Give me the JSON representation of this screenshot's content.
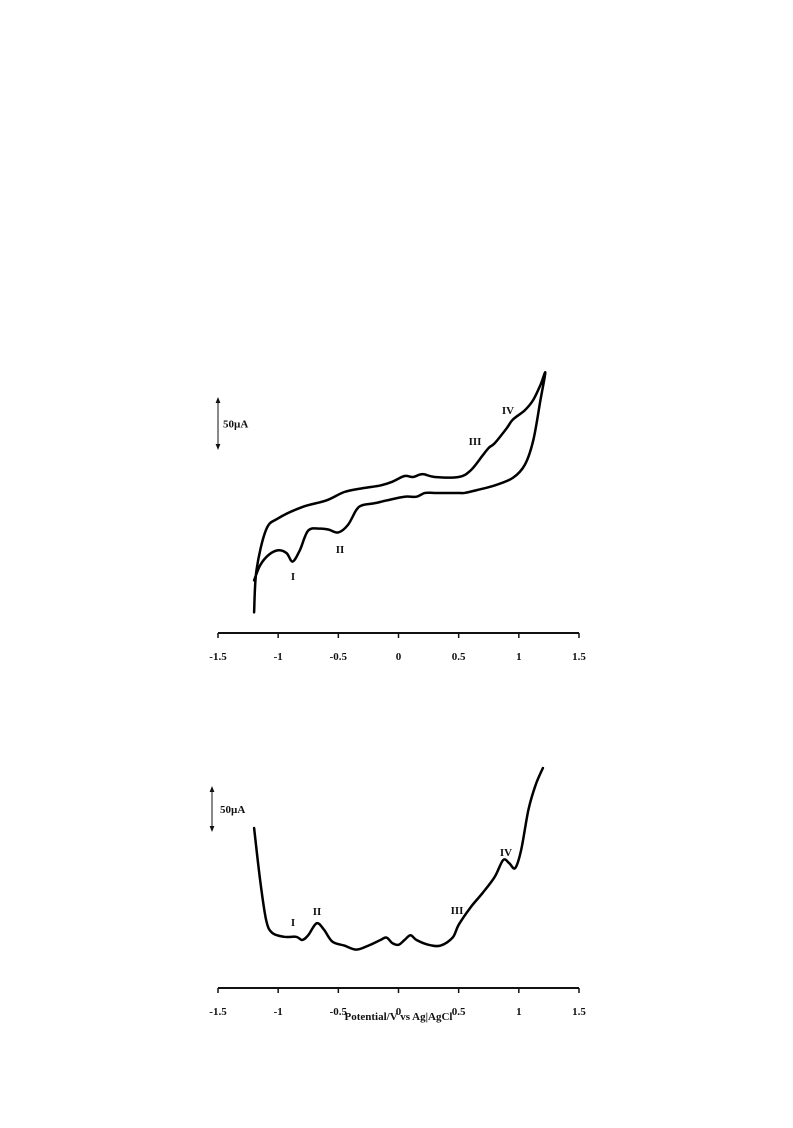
{
  "chart_data": [
    {
      "type": "line",
      "color": "#000000",
      "xlim": [
        -1.5,
        1.5
      ],
      "xticks": [
        -1.5,
        -1,
        -0.5,
        0,
        0.5,
        1,
        1.5
      ],
      "scale_bar": {
        "value": 50,
        "label": "50µA"
      },
      "annotations": [
        "I",
        "II",
        "III",
        "IV"
      ],
      "x": [
        -1.2,
        -1.18,
        -1.1,
        -1.0,
        -0.8,
        -0.6,
        -0.45,
        -0.3,
        -0.15,
        -0.05,
        0.05,
        0.12,
        0.2,
        0.3,
        0.5,
        0.6,
        0.7,
        0.75,
        0.8,
        0.9,
        0.95,
        1.05,
        1.12,
        1.18,
        1.22,
        1.18,
        1.12,
        1.05,
        0.95,
        0.8,
        0.65,
        0.55,
        0.5,
        0.45,
        0.3,
        0.22,
        0.15,
        0.05,
        -0.1,
        -0.2,
        -0.3,
        -0.35,
        -0.42,
        -0.5,
        -0.58,
        -0.65,
        -0.75,
        -0.82,
        -0.88,
        -0.93,
        -1.0,
        -1.08,
        -1.15,
        -1.2
      ],
      "values": [
        22,
        67,
        110,
        122,
        134,
        141,
        150,
        154,
        157,
        161,
        167,
        166,
        169,
        166,
        166,
        173,
        189,
        197,
        202,
        218,
        227,
        237,
        248,
        264,
        277,
        248,
        205,
        179,
        165,
        157,
        152,
        149,
        149,
        149,
        149,
        149,
        145,
        145,
        141,
        138,
        136,
        131,
        115,
        107,
        110,
        111,
        109,
        88,
        76,
        85,
        88,
        83,
        72,
        56
      ]
    },
    {
      "type": "line",
      "color": "#000000",
      "xlim": [
        -1.5,
        1.5
      ],
      "xticks": [
        -1.5,
        -1,
        -0.5,
        0,
        0.5,
        1,
        1.5
      ],
      "x_label": "Potential/V vs Ag|AgCl",
      "scale_bar": {
        "value": 50,
        "label": "50µA"
      },
      "annotations": [
        "I",
        "II",
        "III",
        "IV"
      ],
      "x": [
        -1.2,
        -1.15,
        -1.1,
        -1.05,
        -0.95,
        -0.85,
        -0.8,
        -0.75,
        -0.68,
        -0.62,
        -0.55,
        -0.45,
        -0.35,
        -0.25,
        -0.15,
        -0.1,
        -0.05,
        0,
        0.05,
        0.1,
        0.15,
        0.25,
        0.35,
        0.45,
        0.5,
        0.6,
        0.7,
        0.8,
        0.87,
        0.92,
        0.97,
        1.02,
        1.08,
        1.14,
        1.2
      ],
      "values": [
        200,
        135,
        85,
        69,
        64,
        64,
        60,
        66,
        81,
        73,
        58,
        53,
        48,
        53,
        60,
        63,
        56,
        54,
        60,
        66,
        60,
        54,
        53,
        63,
        79,
        101,
        119,
        139,
        160,
        156,
        150,
        173,
        223,
        254,
        275
      ]
    }
  ]
}
